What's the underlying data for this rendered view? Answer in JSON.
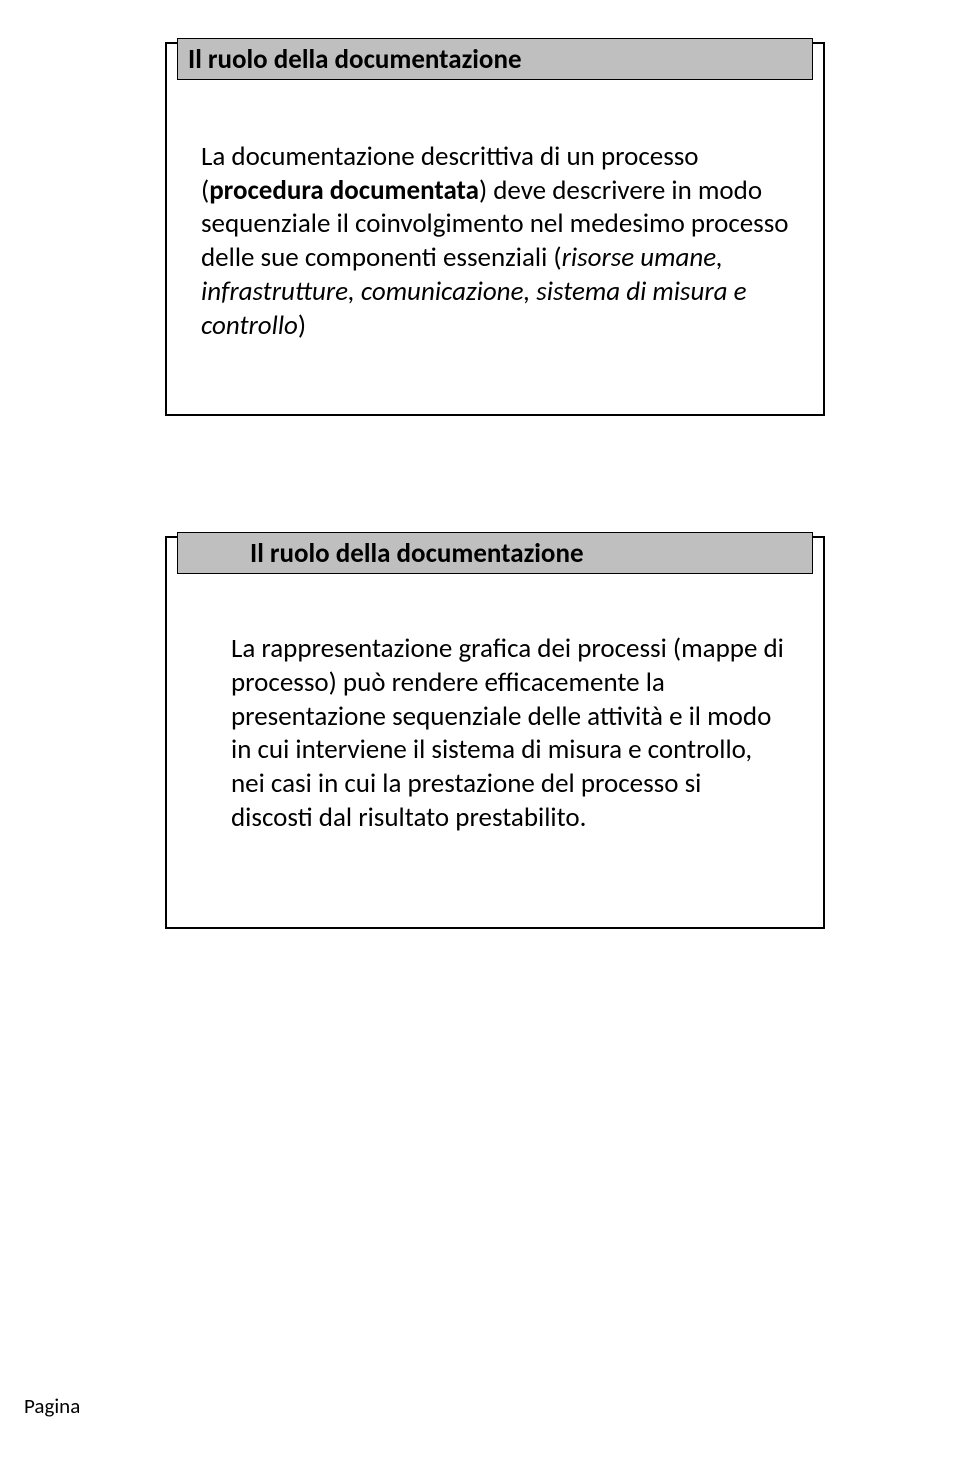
{
  "cards": [
    {
      "title": "Il ruolo della documentazione",
      "intro1": "La documentazione descrittiva di un processo (",
      "bold1": "procedura documentata",
      "intro2": ") deve descrivere in modo sequenziale il coinvolgimento nel medesimo processo delle sue componenti essenziali (",
      "italic1": "risorse umane, infrastrutture, comunicazione, sistema di misura e controllo",
      "intro3": ")"
    },
    {
      "title": "Il ruolo della documentazione",
      "body": "La rappresentazione grafica dei processi (mappe di processo) può rendere efficacemente la presentazione sequenziale delle attività e il modo in cui interviene il sistema di misura e controllo, nei casi in cui la prestazione del processo si discosti dal risultato prestabilito."
    }
  ],
  "footer": "Pagina"
}
